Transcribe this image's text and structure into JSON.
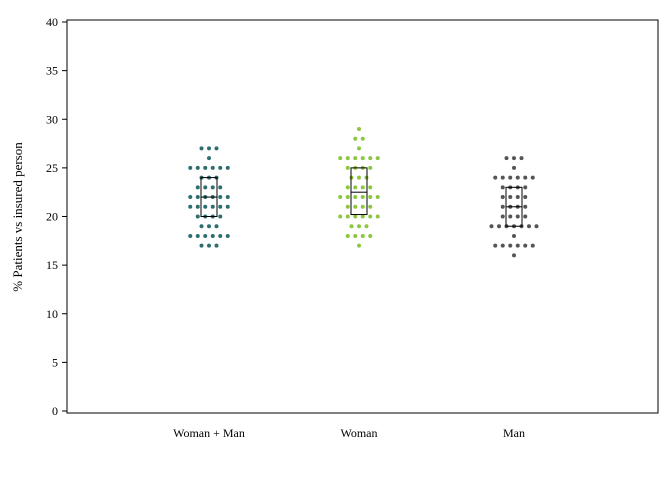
{
  "chart_data": {
    "type": "scatter",
    "subtype": "dot-plot-with-boxplot",
    "title": "",
    "xlabel": "",
    "ylabel": "% Patients vs insured person",
    "ylim": [
      0,
      40
    ],
    "yticks": [
      0,
      5,
      10,
      15,
      20,
      25,
      30,
      35,
      40
    ],
    "grid": false,
    "legend": "none",
    "categories": [
      "Woman + Man",
      "Woman",
      "Man"
    ],
    "series": [
      {
        "color": "#2e6e6e",
        "points": [
          {
            "y": 27,
            "n": 3
          },
          {
            "y": 26,
            "n": 1
          },
          {
            "y": 25,
            "n": 6
          },
          {
            "y": 24,
            "n": 3
          },
          {
            "y": 23,
            "n": 4
          },
          {
            "y": 22,
            "n": 6
          },
          {
            "y": 21,
            "n": 6
          },
          {
            "y": 20,
            "n": 4
          },
          {
            "y": 19,
            "n": 3
          },
          {
            "y": 18,
            "n": 6
          },
          {
            "y": 17,
            "n": 3
          }
        ],
        "box": {
          "q1": 20,
          "median": 22,
          "q3": 24
        }
      },
      {
        "color": "#8dc63f",
        "points": [
          {
            "y": 29,
            "n": 1
          },
          {
            "y": 28,
            "n": 2
          },
          {
            "y": 27,
            "n": 1
          },
          {
            "y": 26,
            "n": 6
          },
          {
            "y": 25,
            "n": 4
          },
          {
            "y": 24,
            "n": 3
          },
          {
            "y": 23,
            "n": 4
          },
          {
            "y": 22,
            "n": 6
          },
          {
            "y": 21,
            "n": 4
          },
          {
            "y": 20,
            "n": 6
          },
          {
            "y": 19,
            "n": 3
          },
          {
            "y": 18,
            "n": 4
          },
          {
            "y": 17,
            "n": 1
          }
        ],
        "box": {
          "q1": 20.2,
          "median": 22.5,
          "q3": 25
        }
      },
      {
        "color": "#555555",
        "points": [
          {
            "y": 26,
            "n": 3
          },
          {
            "y": 25,
            "n": 1
          },
          {
            "y": 24,
            "n": 6
          },
          {
            "y": 23,
            "n": 4
          },
          {
            "y": 22,
            "n": 4
          },
          {
            "y": 21,
            "n": 4
          },
          {
            "y": 20,
            "n": 4
          },
          {
            "y": 19,
            "n": 7
          },
          {
            "y": 18,
            "n": 1
          },
          {
            "y": 17,
            "n": 6
          },
          {
            "y": 16,
            "n": 1
          }
        ],
        "box": {
          "q1": 19,
          "median": 21,
          "q3": 23
        }
      }
    ]
  }
}
